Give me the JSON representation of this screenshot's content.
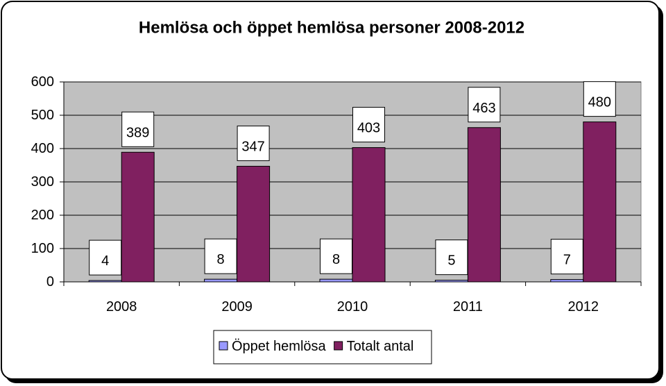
{
  "chart_data": {
    "type": "bar",
    "title": "Hemlösa och öppet hemlösa personer 2008-2012",
    "categories": [
      "2008",
      "2009",
      "2010",
      "2011",
      "2012"
    ],
    "series": [
      {
        "name": "Öppet hemlösa",
        "color": "#9999ff",
        "values": [
          4,
          8,
          8,
          5,
          7
        ]
      },
      {
        "name": "Totalt antal",
        "color": "#802060",
        "values": [
          389,
          347,
          403,
          463,
          480
        ]
      }
    ],
    "ylim": [
      0,
      600
    ],
    "yticks": [
      0,
      100,
      200,
      300,
      400,
      500,
      600
    ],
    "grid": true,
    "legend": "bottom"
  }
}
